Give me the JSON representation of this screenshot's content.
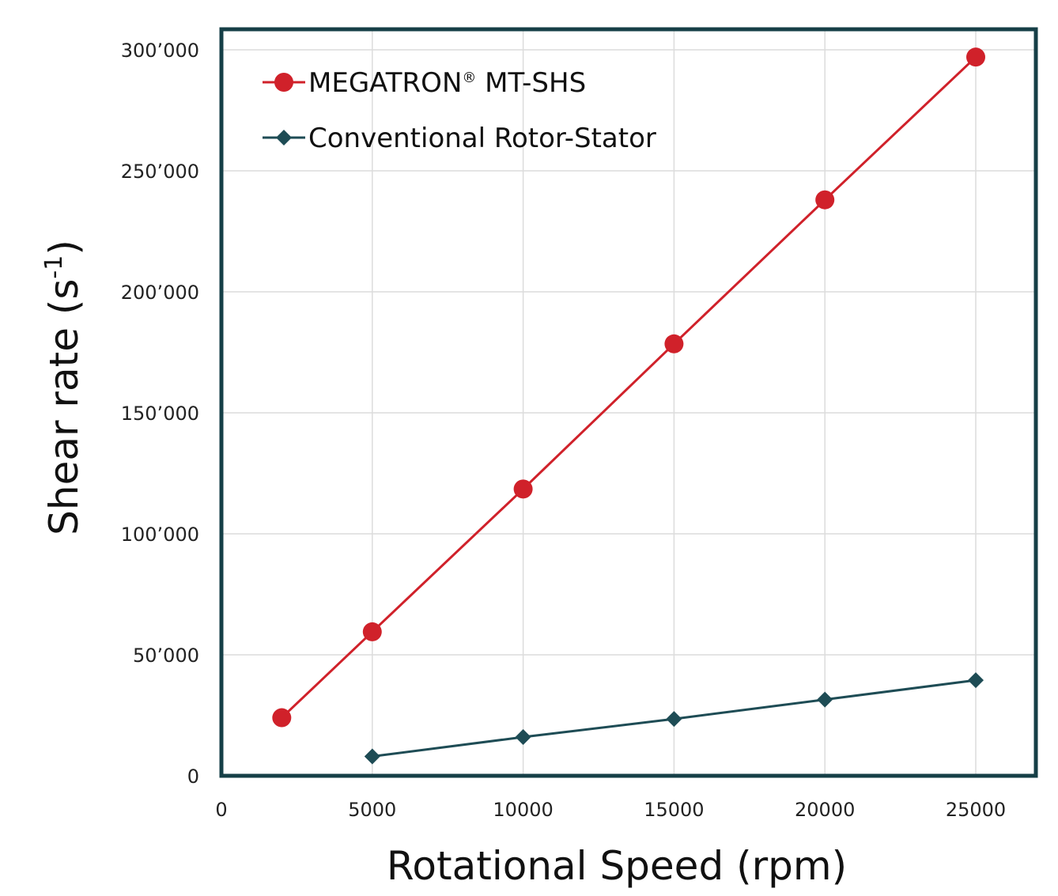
{
  "chart_data": {
    "type": "line",
    "xlabel": "Rotational Speed (rpm)",
    "ylabel": "Shear rate (s",
    "ylabel_superscript": "-1",
    "ylabel_suffix": ")",
    "xlim": [
      0,
      27000
    ],
    "ylim": [
      0,
      300000
    ],
    "x_ticks": [
      0,
      5000,
      10000,
      15000,
      20000,
      25000
    ],
    "x_tick_labels": [
      "0",
      "5000",
      "10000",
      "15000",
      "20000",
      "25000"
    ],
    "y_ticks": [
      0,
      50000,
      100000,
      150000,
      200000,
      250000,
      300000
    ],
    "y_tick_labels": [
      "0",
      "50’000",
      "100’000",
      "150’000",
      "200’000",
      "250’000",
      "300’000"
    ],
    "grid": true,
    "legend_position": "top-left",
    "series": [
      {
        "name": "MEGATRON",
        "name_superscript": "®",
        "name_suffix": " MT-SHS",
        "color": "#d0212a",
        "marker": "circle",
        "x": [
          2000,
          5000,
          10000,
          15000,
          20000,
          25000
        ],
        "y": [
          24000,
          59500,
          118500,
          178500,
          238000,
          297000
        ]
      },
      {
        "name": "Conventional Rotor-Stator",
        "color": "#1e4c55",
        "marker": "diamond",
        "x": [
          5000,
          10000,
          15000,
          20000,
          25000
        ],
        "y": [
          8000,
          16000,
          23500,
          31500,
          39500
        ]
      }
    ],
    "frame_color": "#163f47"
  }
}
